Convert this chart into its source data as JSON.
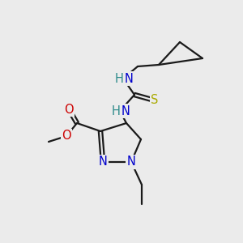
{
  "bg_color": "#ebebeb",
  "bond_color": "#1a1a1a",
  "atom_colors": {
    "N": "#0000cc",
    "O": "#cc0000",
    "S": "#aaaa00",
    "H_label": "#2e8b8b",
    "C": "#1a1a1a"
  },
  "lw": 1.6,
  "fs": 10.5
}
